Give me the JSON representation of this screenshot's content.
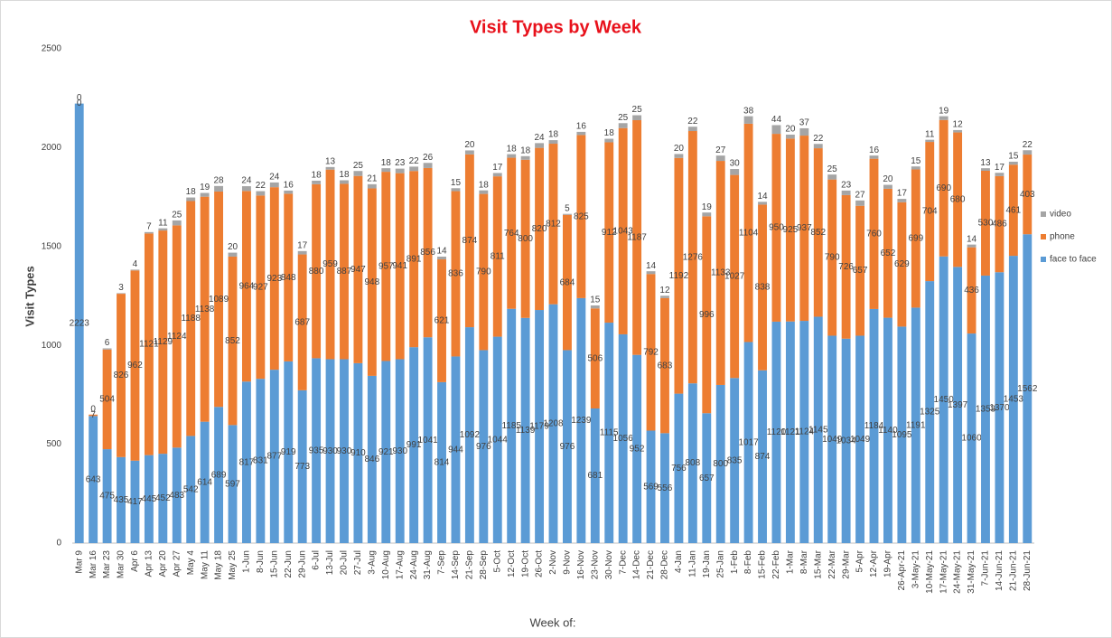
{
  "chart_data": {
    "type": "stacked_bar",
    "title": "Visit Types by Week",
    "x_label": "Week of:",
    "y_label": "Visit Types",
    "categories": [
      "Mar 9",
      "Mar 16",
      "Mar 23",
      "Mar 30",
      "Apr 6",
      "Apr 13",
      "Apr 20",
      "Apr 27",
      "May 4",
      "May 11",
      "May 18",
      "May 25",
      "1-Jun",
      "8-Jun",
      "15-Jun",
      "22-Jun",
      "29-Jun",
      "6-Jul",
      "13-Jul",
      "20-Jul",
      "27-Jul",
      "3-Aug",
      "10-Aug",
      "17-Aug",
      "24-Aug",
      "31-Aug",
      "7-Sep",
      "14-Sep",
      "21-Sep",
      "28-Sep",
      "5-Oct",
      "12-Oct",
      "19-Oct",
      "26-Oct",
      "2-Nov",
      "9-Nov",
      "16-Nov",
      "23-Nov",
      "30-Nov",
      "7-Dec",
      "14-Dec",
      "21-Dec",
      "28-Dec",
      "4-Jan",
      "11-Jan",
      "19-Jan",
      "25-Jan",
      "1-Feb",
      "8-Feb",
      "15-Feb",
      "22-Feb",
      "1-Mar",
      "8-Mar",
      "15-Mar",
      "22-Mar",
      "29-Mar",
      "5-Apr",
      "12-Apr",
      "19-Apr",
      "26-Apr-21",
      "3-May-21",
      "10-May-21",
      "17-May-21",
      "24-May-21",
      "31-May-21",
      "7-Jun-21",
      "14-Jun-21",
      "21-Jun-21",
      "28-Jun-21"
    ],
    "series": [
      {
        "name": "face to face",
        "color": "#5b9bd5",
        "values": [
          2223,
          643,
          475,
          435,
          417,
          445,
          452,
          483,
          542,
          614,
          689,
          597,
          817,
          831,
          877,
          919,
          773,
          935,
          930,
          930,
          910,
          846,
          921,
          930,
          991,
          1041,
          814,
          944,
          1092,
          976,
          1044,
          1185,
          1139,
          1179,
          1208,
          976,
          1239,
          681,
          1115,
          1056,
          952,
          569,
          556,
          756,
          808,
          657,
          800,
          835,
          1017,
          874,
          1120,
          1121,
          1124,
          1145,
          1049,
          1034,
          1049,
          1184,
          1140,
          1095,
          1191,
          1325,
          1450,
          1397,
          1060,
          1353,
          1370,
          1453,
          1562
        ]
      },
      {
        "name": "phone",
        "color": "#ed7d31",
        "values": [
          0,
          7,
          504,
          826,
          962,
          1121,
          1129,
          1124,
          1188,
          1138,
          1089,
          852,
          964,
          927,
          923,
          848,
          687,
          880,
          959,
          887,
          947,
          948,
          957,
          941,
          891,
          856,
          621,
          836,
          874,
          790,
          811,
          764,
          800,
          820,
          812,
          684,
          825,
          506,
          912,
          1043,
          1187,
          792,
          683,
          1192,
          1276,
          996,
          1133,
          1027,
          1104,
          838,
          950,
          925,
          937,
          852,
          790,
          726,
          657,
          760,
          652,
          629,
          699,
          704,
          690,
          680,
          436,
          530,
          486,
          461,
          403
        ]
      },
      {
        "name": "video",
        "color": "#a5a5a5",
        "values": [
          0,
          0,
          6,
          3,
          4,
          7,
          11,
          25,
          18,
          19,
          28,
          20,
          24,
          22,
          24,
          16,
          17,
          18,
          13,
          18,
          25,
          21,
          18,
          23,
          22,
          26,
          14,
          15,
          20,
          18,
          17,
          18,
          18,
          24,
          18,
          5,
          16,
          15,
          18,
          25,
          25,
          14,
          12,
          20,
          22,
          19,
          27,
          30,
          38,
          14,
          44,
          20,
          37,
          22,
          25,
          23,
          27,
          16,
          20,
          17,
          15,
          11,
          19,
          12,
          14,
          13,
          17,
          15,
          22
        ]
      }
    ],
    "ylim": [
      0,
      2500
    ],
    "yticks": [
      0,
      500,
      1000,
      1500,
      2000,
      2500
    ],
    "legend": "right"
  }
}
